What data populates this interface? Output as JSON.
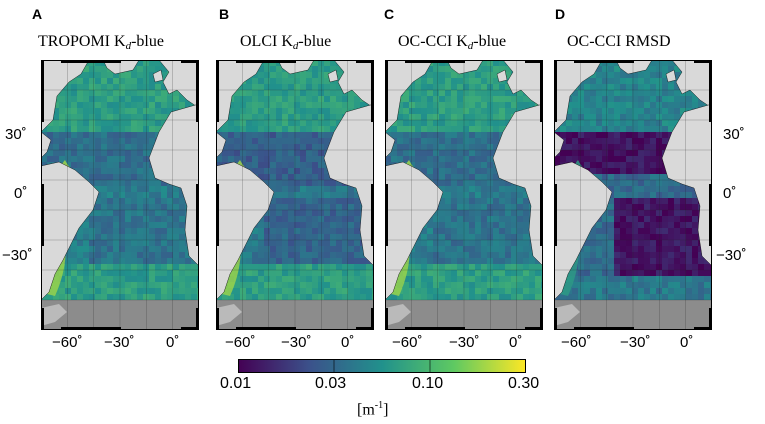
{
  "panels": [
    {
      "letter": "A",
      "title_main": "TROPOMI K",
      "title_sub": "d",
      "title_rest": "-blue",
      "variant": "kd"
    },
    {
      "letter": "B",
      "title_main": "OLCI K",
      "title_sub": "d",
      "title_rest": "-blue",
      "variant": "kd2"
    },
    {
      "letter": "C",
      "title_main": "OC-CCI K",
      "title_sub": "d",
      "title_rest": "-blue",
      "variant": "kd3"
    },
    {
      "letter": "D",
      "title_main": "OC-CCI RMSD",
      "title_sub": "",
      "title_rest": "",
      "variant": "rmsd"
    }
  ],
  "lat_ticks": [
    "30˚",
    "0˚",
    "−30˚"
  ],
  "lon_ticks": [
    "−60˚",
    "−30˚",
    "0˚"
  ],
  "colorbar": {
    "ticks": [
      "0.01",
      "0.03",
      "0.10",
      "0.30"
    ],
    "units_main": "[m",
    "units_sup": "-1",
    "units_end": "]",
    "colors": [
      "#440154",
      "#3b528b",
      "#21918c",
      "#5ec962",
      "#fde725"
    ]
  },
  "colors": {
    "land": "#d9d9d9",
    "ice_gray": "#8c8c8c",
    "frame": "#000000"
  }
}
